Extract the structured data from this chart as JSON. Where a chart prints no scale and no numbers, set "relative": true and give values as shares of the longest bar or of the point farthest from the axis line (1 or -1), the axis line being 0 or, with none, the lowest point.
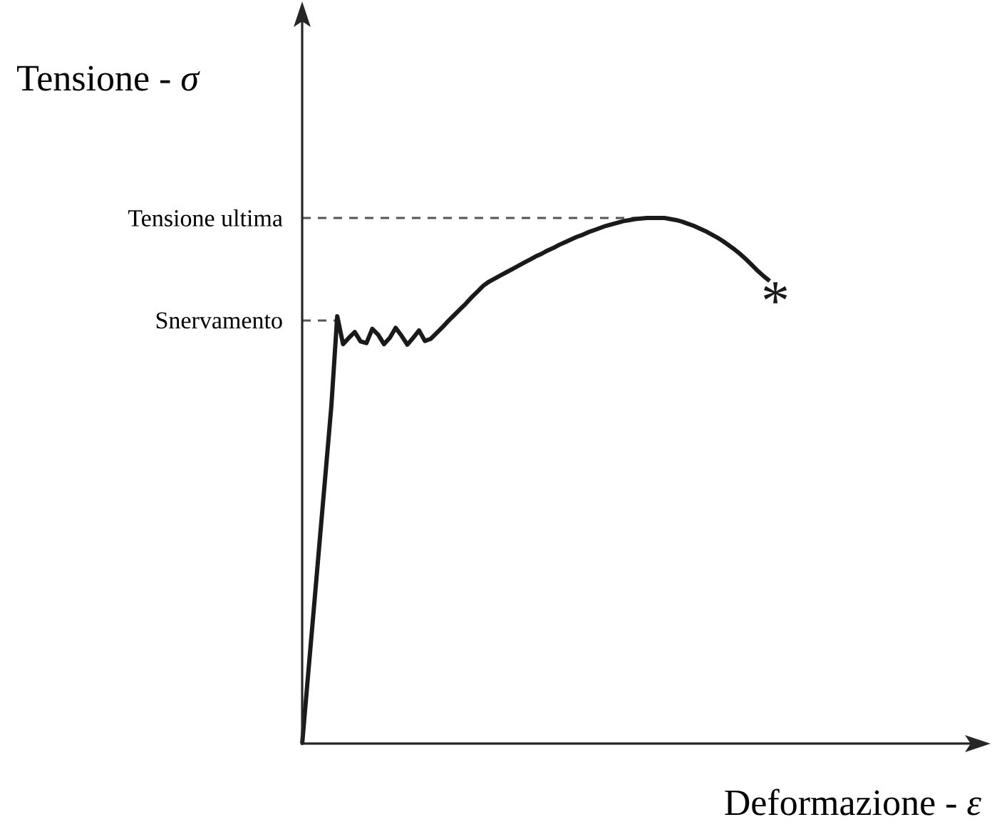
{
  "chart_data": {
    "type": "line",
    "relative": true,
    "ylabel": "Tensione - *σ*",
    "xlabel": "Deformazione - *ε*",
    "color": "#1a1a1a",
    "line_style": "solid",
    "marker": "none",
    "categories": [
      null,
      null,
      null,
      null,
      null,
      null,
      null,
      null,
      null,
      null,
      null,
      null,
      null,
      null,
      null,
      null,
      null,
      null,
      null,
      null,
      null,
      null,
      null,
      null,
      null,
      null,
      null,
      null,
      null,
      null,
      null,
      null,
      null,
      null,
      null,
      null,
      null,
      null,
      null,
      null,
      null,
      null,
      null,
      null,
      null,
      null,
      null,
      null,
      null,
      null,
      null,
      null,
      null,
      null,
      null,
      null,
      null,
      null,
      null,
      null,
      null,
      null,
      null,
      null,
      null,
      null,
      null,
      null,
      null,
      null,
      null,
      null,
      null,
      null,
      null,
      null,
      null,
      null,
      null,
      null,
      null
    ],
    "values": [
      0,
      0.129,
      0.257,
      0.386,
      0.514,
      0.643,
      0.813,
      0.76,
      0.772,
      0.783,
      0.765,
      0.762,
      0.789,
      0.778,
      0.76,
      0.772,
      0.791,
      0.776,
      0.759,
      0.772,
      0.786,
      0.766,
      0.77,
      0.781,
      0.792,
      0.804,
      0.815,
      0.826,
      0.837,
      0.849,
      0.86,
      0.871,
      0.879,
      0.885,
      0.891,
      0.897,
      0.903,
      0.909,
      0.915,
      0.921,
      0.927,
      0.932,
      0.938,
      0.943,
      0.949,
      0.954,
      0.959,
      0.964,
      0.968,
      0.973,
      0.977,
      0.981,
      0.985,
      0.988,
      0.991,
      0.994,
      0.996,
      0.998,
      0.999,
      1.0,
      1.0,
      1.0,
      1.0,
      0.998,
      0.996,
      0.993,
      0.989,
      0.985,
      0.98,
      0.975,
      0.969,
      0.963,
      0.956,
      0.948,
      0.94,
      0.931,
      0.921,
      0.91,
      0.899,
      0.889,
      0.88
    ],
    "ref_lines": [
      {
        "axis": "y",
        "value": 1.0,
        "label": "Tensione ultima",
        "color": "#555555",
        "line_style": "dashed"
      },
      {
        "axis": "y",
        "value": 0.805,
        "label": "Snervamento",
        "color": "#555555",
        "line_style": "dashed"
      }
    ],
    "annotations": [
      "*"
    ]
  }
}
